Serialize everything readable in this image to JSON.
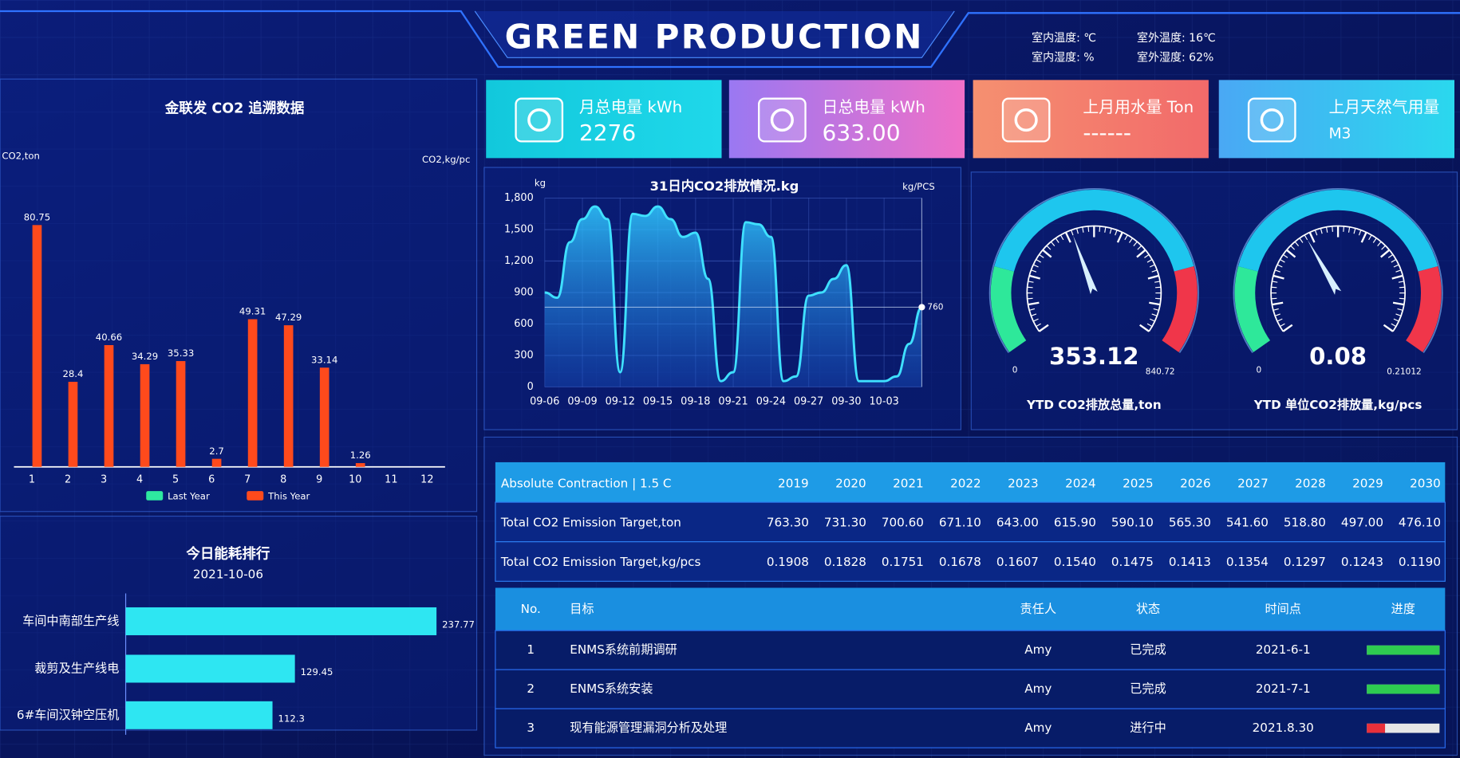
{
  "header": {
    "title": "GREEN PRODUCTION",
    "env": [
      "室内温度: ℃",
      "室外温度: 16℃",
      "室内湿度: %",
      "室外湿度: 62%"
    ]
  },
  "kpis": [
    {
      "label": "月总电量 kWh",
      "value": "2276"
    },
    {
      "label": "日总电量 kWh",
      "value": "633.00"
    },
    {
      "label": "上月用水量 Ton",
      "value": "------"
    },
    {
      "label": "上月天然气用量",
      "value": "M3"
    }
  ],
  "chart_data": [
    {
      "type": "bar",
      "title": "金联发 CO2 追溯数据",
      "ylabel": "CO2,ton",
      "y2label": "CO2,kg/pc",
      "categories": [
        "1",
        "2",
        "3",
        "4",
        "5",
        "6",
        "7",
        "8",
        "9",
        "10",
        "11",
        "12"
      ],
      "series": [
        {
          "name": "Last Year",
          "color": "#2ee8a0",
          "values": [
            null,
            null,
            null,
            null,
            null,
            null,
            null,
            null,
            null,
            null,
            null,
            null
          ]
        },
        {
          "name": "This Year",
          "color": "#ff4a1c",
          "values": [
            80.75,
            28.4,
            40.66,
            34.29,
            35.33,
            2.7,
            49.31,
            47.29,
            33.14,
            1.26,
            null,
            null
          ]
        }
      ],
      "ylim": [
        0,
        100
      ]
    },
    {
      "type": "hbar",
      "title": "今日能耗排行",
      "subtitle": "2021-10-06",
      "categories": [
        "车间中南部生产线",
        "裁剪及生产线电",
        "6#车间汉钟空压机"
      ],
      "values": [
        237.77,
        129.45,
        112.3
      ],
      "color": "#2ee6f2",
      "xlim": [
        0,
        260
      ]
    },
    {
      "type": "area",
      "title": "31日内CO2排放情况.kg",
      "ylabel": "kg",
      "y2label": "kg/PCS",
      "categories": [
        "09-06",
        null,
        null,
        "09-09",
        null,
        null,
        "09-12",
        null,
        null,
        "09-15",
        null,
        null,
        "09-18",
        null,
        null,
        "09-21",
        null,
        null,
        "09-24",
        null,
        null,
        "09-27",
        null,
        null,
        "09-30",
        null,
        null,
        "10-03",
        null,
        null,
        null
      ],
      "values": [
        900,
        850,
        1380,
        1600,
        1720,
        1600,
        140,
        1650,
        1630,
        1720,
        1600,
        1430,
        1470,
        1030,
        55,
        140,
        1570,
        1550,
        1430,
        55,
        100,
        870,
        900,
        1030,
        1160,
        55,
        55,
        55,
        100,
        410,
        760
      ],
      "color": "#3fe0ff",
      "ylim": [
        0,
        1800
      ],
      "yticks": [
        0,
        300,
        600,
        900,
        {
          "value": 1200,
          "label": "1,200"
        },
        {
          "value": 1500,
          "label": "1,500"
        },
        {
          "value": 1800,
          "label": "1,800"
        }
      ],
      "grid": true
    },
    {
      "type": "gauge",
      "title": "YTD CO2排放总量,ton",
      "value": 353.12,
      "min": 0,
      "max": 840.72
    },
    {
      "type": "gauge",
      "title": "YTD 单位CO2排放量,kg/pcs",
      "value": 0.08,
      "min": 0,
      "max": 0.21012
    }
  ],
  "targets": {
    "header": [
      "Absolute Contraction | 1.5 C",
      "2019",
      "2020",
      "2021",
      "2022",
      "2023",
      "2024",
      "2025",
      "2026",
      "2027",
      "2028",
      "2029",
      "2030"
    ],
    "rows": [
      [
        "Total CO2 Emission Target,ton",
        "763.30",
        "731.30",
        "700.60",
        "671.10",
        "643.00",
        "615.90",
        "590.10",
        "565.30",
        "541.60",
        "518.80",
        "497.00",
        "476.10"
      ],
      [
        "Total CO2 Emission Target,kg/pcs",
        "0.1908",
        "0.1828",
        "0.1751",
        "0.1678",
        "0.1607",
        "0.1540",
        "0.1475",
        "0.1413",
        "0.1354",
        "0.1297",
        "0.1243",
        "0.1190"
      ]
    ]
  },
  "tasks": {
    "header": [
      "No.",
      "目标",
      "责任人",
      "状态",
      "时间点",
      "进度"
    ],
    "rows": [
      [
        "1",
        "ENMS系统前期调研",
        "Amy",
        "已完成",
        "2021-6-1"
      ],
      [
        "2",
        "ENMS系统安装",
        "Amy",
        "已完成",
        "2021-7-1"
      ],
      [
        "3",
        "现有能源管理漏洞分析及处理",
        "Amy",
        "进行中",
        "2021.8.30"
      ]
    ],
    "progress": [
      100,
      100,
      25
    ],
    "progress_colors": [
      "#2ecc50",
      "#2ecc50",
      "#e8303a"
    ]
  }
}
